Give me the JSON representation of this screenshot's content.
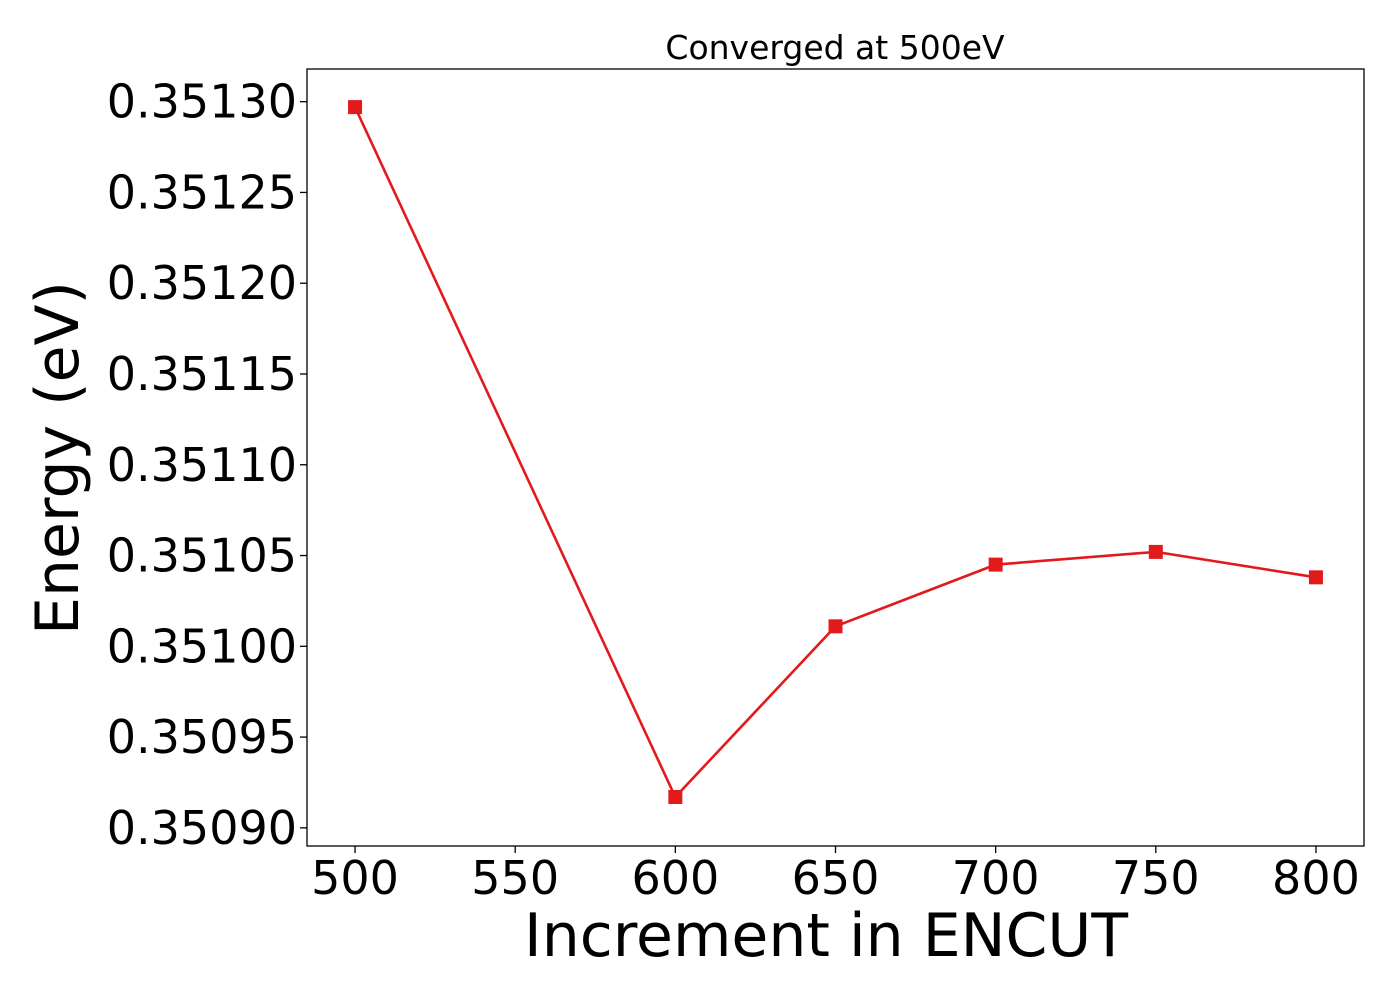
{
  "chart_data": {
    "type": "line",
    "title": "Converged at 500eV",
    "xlabel": "Increment in ENCUT",
    "ylabel": "Energy (eV)",
    "xlim": [
      485,
      815
    ],
    "ylim": [
      0.35089,
      0.351318
    ],
    "x_ticks": [
      500,
      550,
      600,
      650,
      700,
      750,
      800
    ],
    "x_tick_labels": [
      "500",
      "550",
      "600",
      "650",
      "700",
      "750",
      "800"
    ],
    "y_ticks": [
      0.3509,
      0.35095,
      0.351,
      0.35105,
      0.3511,
      0.35115,
      0.3512,
      0.35125,
      0.3513
    ],
    "y_tick_labels": [
      "0.35090",
      "0.35095",
      "0.35100",
      "0.35105",
      "0.35110",
      "0.35115",
      "0.35120",
      "0.35125",
      "0.35130"
    ],
    "grid": false,
    "series": [
      {
        "color": "#e31a1c",
        "marker": "square",
        "x": [
          500,
          600,
          650,
          700,
          750,
          800
        ],
        "y": [
          0.351297,
          0.350917,
          0.351011,
          0.351045,
          0.351052,
          0.351038
        ]
      }
    ]
  }
}
